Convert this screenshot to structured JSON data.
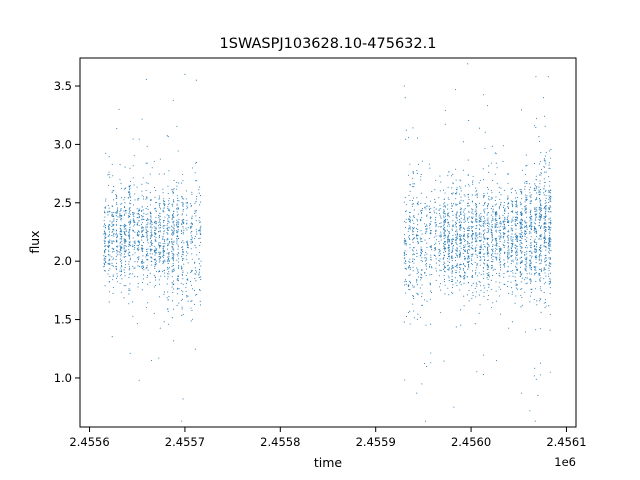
{
  "chart_data": {
    "type": "scatter",
    "title": "1SWASPJ103628.10-475632.1",
    "xlabel": "time",
    "ylabel": "flux",
    "x_offset_label": "1e6",
    "xlim": [
      2.45559,
      2.45611
    ],
    "ylim": [
      0.58,
      3.74
    ],
    "x_ticks": [
      2.4556,
      2.4557,
      2.4558,
      2.4559,
      2.456,
      2.4561
    ],
    "x_tick_labels": [
      "2.4556",
      "2.4557",
      "2.4558",
      "2.4559",
      "2.4560",
      "2.4561"
    ],
    "y_ticks": [
      1.0,
      1.5,
      2.0,
      2.5,
      3.0,
      3.5
    ],
    "y_tick_labels": [
      "1.0",
      "1.5",
      "2.0",
      "2.5",
      "3.0",
      "3.5"
    ],
    "grid": false,
    "marker_color": "#1f77b4",
    "series": [
      {
        "clusters": [
          {
            "x_range": [
              2.455614,
              2.455635
            ],
            "center": 2.2,
            "spread": 0.2,
            "count": 320
          },
          {
            "x_range": [
              2.455635,
              2.455658
            ],
            "center": 2.22,
            "spread": 0.22,
            "count": 340
          },
          {
            "x_range": [
              2.455658,
              2.45568
            ],
            "center": 2.2,
            "spread": 0.22,
            "count": 330
          },
          {
            "x_range": [
              2.45568,
              2.4557
            ],
            "center": 2.15,
            "spread": 0.28,
            "count": 330
          },
          {
            "x_range": [
              2.4557,
              2.455718
            ],
            "center": 2.15,
            "spread": 0.28,
            "count": 170
          },
          {
            "x_range": [
              2.455929,
              2.45595
            ],
            "center": 2.15,
            "spread": 0.3,
            "count": 260
          },
          {
            "x_range": [
              2.45595,
              2.45597
            ],
            "center": 2.15,
            "spread": 0.25,
            "count": 180
          },
          {
            "x_range": [
              2.45597,
              2.455995
            ],
            "center": 2.2,
            "spread": 0.22,
            "count": 460
          },
          {
            "x_range": [
              2.455995,
              2.45602
            ],
            "center": 2.2,
            "spread": 0.25,
            "count": 420
          },
          {
            "x_range": [
              2.45602,
              2.456045
            ],
            "center": 2.2,
            "spread": 0.22,
            "count": 380
          },
          {
            "x_range": [
              2.456045,
              2.456065
            ],
            "center": 2.2,
            "spread": 0.25,
            "count": 380
          },
          {
            "x_range": [
              2.456065,
              2.456085
            ],
            "center": 2.25,
            "spread": 0.3,
            "count": 460
          }
        ],
        "outliers": [
          {
            "x": 2.4557,
            "y": 3.6
          },
          {
            "x": 2.455712,
            "y": 3.55
          },
          {
            "x": 2.455698,
            "y": 0.82
          },
          {
            "x": 2.455652,
            "y": 0.98
          },
          {
            "x": 2.45593,
            "y": 3.5
          },
          {
            "x": 2.455931,
            "y": 3.4
          },
          {
            "x": 2.455982,
            "y": 0.75
          },
          {
            "x": 2.456068,
            "y": 3.58
          },
          {
            "x": 2.456081,
            "y": 3.58
          },
          {
            "x": 2.45607,
            "y": 0.85
          },
          {
            "x": 2.456053,
            "y": 0.87
          },
          {
            "x": 2.455943,
            "y": 0.87
          },
          {
            "x": 2.455631,
            "y": 3.3
          },
          {
            "x": 2.456076,
            "y": 3.4
          }
        ]
      }
    ]
  }
}
